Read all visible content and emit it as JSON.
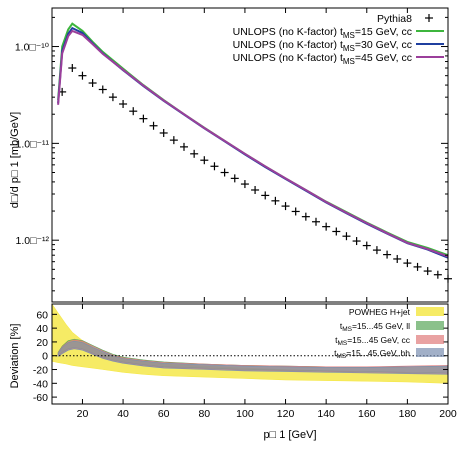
{
  "chart_data": [
    {
      "type": "line",
      "xlabel": "",
      "ylabel": "d□/d p□ 1  [mb/GeV]",
      "xlim": [
        5,
        200
      ],
      "ylim": [
        2.3e-13,
        2.5e-10
      ],
      "yscale": "log",
      "ytick_values": [
        1e-10,
        1e-11,
        1e-12
      ],
      "ytick_labels": [
        "1.0□⁻¹⁰",
        "1.0□⁻¹¹",
        "1.0□⁻¹²"
      ],
      "legend_position": "top-right",
      "series": [
        {
          "name": "Pythia8",
          "style": "markers",
          "color": "#000000",
          "x": [
            10,
            15,
            20,
            25,
            30,
            35,
            40,
            45,
            50,
            55,
            60,
            65,
            70,
            75,
            80,
            85,
            90,
            95,
            100,
            105,
            110,
            115,
            120,
            125,
            130,
            135,
            140,
            145,
            150,
            155,
            160,
            165,
            170,
            175,
            180,
            185,
            190,
            195,
            200
          ],
          "y": [
            3.4e-11,
            6e-11,
            5e-11,
            4.2e-11,
            3.6e-11,
            3e-11,
            2.55e-11,
            2.15e-11,
            1.8e-11,
            1.52e-11,
            1.28e-11,
            1.08e-11,
            9.2e-12,
            7.8e-12,
            6.7e-12,
            5.8e-12,
            5e-12,
            4.35e-12,
            3.8e-12,
            3.3e-12,
            2.9e-12,
            2.55e-12,
            2.25e-12,
            1.98e-12,
            1.75e-12,
            1.55e-12,
            1.38e-12,
            1.23e-12,
            1.1e-12,
            9.8e-13,
            8.8e-13,
            7.9e-13,
            7.1e-13,
            6.4e-13,
            5.8e-13,
            5.3e-13,
            4.8e-13,
            4.4e-13,
            4e-13
          ]
        },
        {
          "name": "UNLOPS (no K-factor) tₘₛ=15 GeV, cc",
          "legend_label": "UNLOPS (no K-factor) t",
          "legend_sub": "MS",
          "legend_suffix": "=15 GeV, cc",
          "color": "#3db53d",
          "x": [
            8,
            10,
            13,
            15,
            20,
            25,
            30,
            40,
            50,
            60,
            70,
            80,
            90,
            100,
            110,
            120,
            130,
            140,
            150,
            160,
            170,
            180,
            190,
            200
          ],
          "y": [
            2.8e-11,
            1e-10,
            1.5e-10,
            1.72e-10,
            1.45e-10,
            1.12e-10,
            8.8e-11,
            5.9e-11,
            4e-11,
            2.8e-11,
            2e-11,
            1.45e-11,
            1.06e-11,
            7.8e-12,
            5.8e-12,
            4.35e-12,
            3.3e-12,
            2.5e-12,
            1.95e-12,
            1.52e-12,
            1.2e-12,
            9.6e-13,
            8.3e-13,
            7e-13
          ]
        },
        {
          "name": "UNLOPS (no K-factor) tₘₛ=30 GeV, cc",
          "legend_label": "UNLOPS (no K-factor) t",
          "legend_sub": "MS",
          "legend_suffix": "=30 GeV, cc",
          "color": "#1f3f9f",
          "x": [
            8,
            10,
            13,
            15,
            20,
            25,
            30,
            40,
            50,
            60,
            70,
            80,
            90,
            100,
            110,
            120,
            130,
            140,
            150,
            160,
            170,
            180,
            190,
            200
          ],
          "y": [
            2.6e-11,
            9e-11,
            1.35e-10,
            1.55e-10,
            1.38e-10,
            1.08e-10,
            8.5e-11,
            5.7e-11,
            3.9e-11,
            2.75e-11,
            1.98e-11,
            1.43e-11,
            1.05e-11,
            7.7e-12,
            5.7e-12,
            4.3e-12,
            3.25e-12,
            2.45e-12,
            1.9e-12,
            1.48e-12,
            1.17e-12,
            9.3e-13,
            8e-13,
            6.6e-13
          ]
        },
        {
          "name": "UNLOPS (no K-factor) tₘₛ=45 GeV, cc",
          "legend_label": "UNLOPS (no K-factor) t",
          "legend_sub": "MS",
          "legend_suffix": "=45 GeV, cc",
          "color": "#9b3f9b",
          "x": [
            8,
            10,
            13,
            15,
            20,
            25,
            30,
            40,
            50,
            60,
            70,
            80,
            90,
            100,
            110,
            120,
            130,
            140,
            150,
            160,
            170,
            180,
            190,
            200
          ],
          "y": [
            2.5e-11,
            8.5e-11,
            1.28e-10,
            1.45e-10,
            1.32e-10,
            1.06e-10,
            8.4e-11,
            5.75e-11,
            3.95e-11,
            2.78e-11,
            2e-11,
            1.44e-11,
            1.06e-11,
            7.8e-12,
            5.8e-12,
            4.35e-12,
            3.3e-12,
            2.48e-12,
            1.92e-12,
            1.5e-12,
            1.18e-12,
            9.4e-13,
            8.1e-13,
            6.8e-13
          ]
        }
      ]
    },
    {
      "type": "area",
      "xlabel": "p□ 1  [GeV]",
      "ylabel": "Deviation [%]",
      "xlim": [
        5,
        200
      ],
      "ylim": [
        -70,
        75
      ],
      "xtick_values": [
        20,
        40,
        60,
        80,
        100,
        120,
        140,
        160,
        180,
        200
      ],
      "xtick_labels": [
        "20",
        "40",
        "60",
        "80",
        "100",
        "120",
        "140",
        "160",
        "180",
        "200"
      ],
      "ytick_values": [
        60,
        40,
        20,
        0,
        -20,
        -40,
        -60
      ],
      "ytick_labels": [
        "60",
        "40",
        "20",
        "0",
        "-20",
        "-40",
        "-60"
      ],
      "legend_position": "top-right",
      "series": [
        {
          "name": "POWHEG H+jet",
          "legend_label": "POWHEG H+jet",
          "legend_sub": "",
          "legend_suffix": "",
          "color": "#f5e84a",
          "x": [
            5,
            8,
            12,
            15,
            20,
            25,
            30,
            40,
            50,
            60,
            80,
            100,
            120,
            140,
            160,
            180,
            200
          ],
          "upper": [
            75,
            62,
            45,
            34,
            22,
            12,
            4,
            -3,
            -8,
            -12,
            -15,
            -18,
            -20,
            -22,
            -24,
            -25,
            -27
          ],
          "lower": [
            -8,
            -10,
            -12,
            -14,
            -16,
            -18,
            -20,
            -24,
            -27,
            -29,
            -31,
            -33,
            -35,
            -36,
            -37,
            -38,
            -40
          ]
        },
        {
          "name": "tₘₛ=15...45 GeV,    ll",
          "legend_label": "t",
          "legend_sub": "MS",
          "legend_suffix": "=15...45 GeV,    ll",
          "color": "#5aa65a",
          "x": [
            8,
            10,
            13,
            16,
            20,
            25,
            30,
            35,
            40,
            50,
            60,
            80,
            100,
            120,
            140,
            160,
            180,
            200
          ],
          "upper": [
            5,
            14,
            22,
            24,
            22,
            15,
            8,
            2,
            -2,
            -6,
            -9,
            -12,
            -14,
            -15,
            -16,
            -17,
            -16,
            -15
          ],
          "lower": [
            0,
            5,
            10,
            12,
            10,
            4,
            -2,
            -6,
            -9,
            -13,
            -16,
            -18,
            -20,
            -21,
            -22,
            -23,
            -24,
            -25
          ]
        },
        {
          "name": "tₘₛ=15...45 GeV,  cc",
          "legend_label": "t",
          "legend_sub": "MS",
          "legend_suffix": "=15...45 GeV,  cc",
          "color": "#e07a7a",
          "x": [
            8,
            10,
            13,
            16,
            20,
            25,
            30,
            35,
            40,
            50,
            60,
            80,
            100,
            120,
            140,
            160,
            180,
            200
          ],
          "upper": [
            4,
            13,
            20,
            23,
            21,
            14,
            7,
            1,
            -3,
            -7,
            -10,
            -12,
            -14,
            -15,
            -16,
            -16,
            -15,
            -14
          ],
          "lower": [
            0,
            4,
            9,
            11,
            9,
            3,
            -3,
            -7,
            -10,
            -14,
            -17,
            -19,
            -21,
            -22,
            -23,
            -24,
            -25,
            -26
          ]
        },
        {
          "name": "tₘₛ=15...45 GeV, hh",
          "legend_label": "t",
          "legend_sub": "MS",
          "legend_suffix": "=15...45 GeV, hh",
          "color": "#7a8fb0",
          "x": [
            8,
            10,
            13,
            16,
            20,
            25,
            30,
            35,
            40,
            50,
            60,
            80,
            100,
            120,
            140,
            160,
            180,
            200
          ],
          "upper": [
            3,
            12,
            19,
            21,
            19,
            12,
            6,
            0,
            -4,
            -8,
            -11,
            -13,
            -15,
            -16,
            -17,
            -17,
            -16,
            -15
          ],
          "lower": [
            -1,
            3,
            8,
            10,
            8,
            2,
            -4,
            -8,
            -11,
            -15,
            -18,
            -20,
            -22,
            -23,
            -24,
            -25,
            -26,
            -27
          ]
        }
      ]
    }
  ]
}
